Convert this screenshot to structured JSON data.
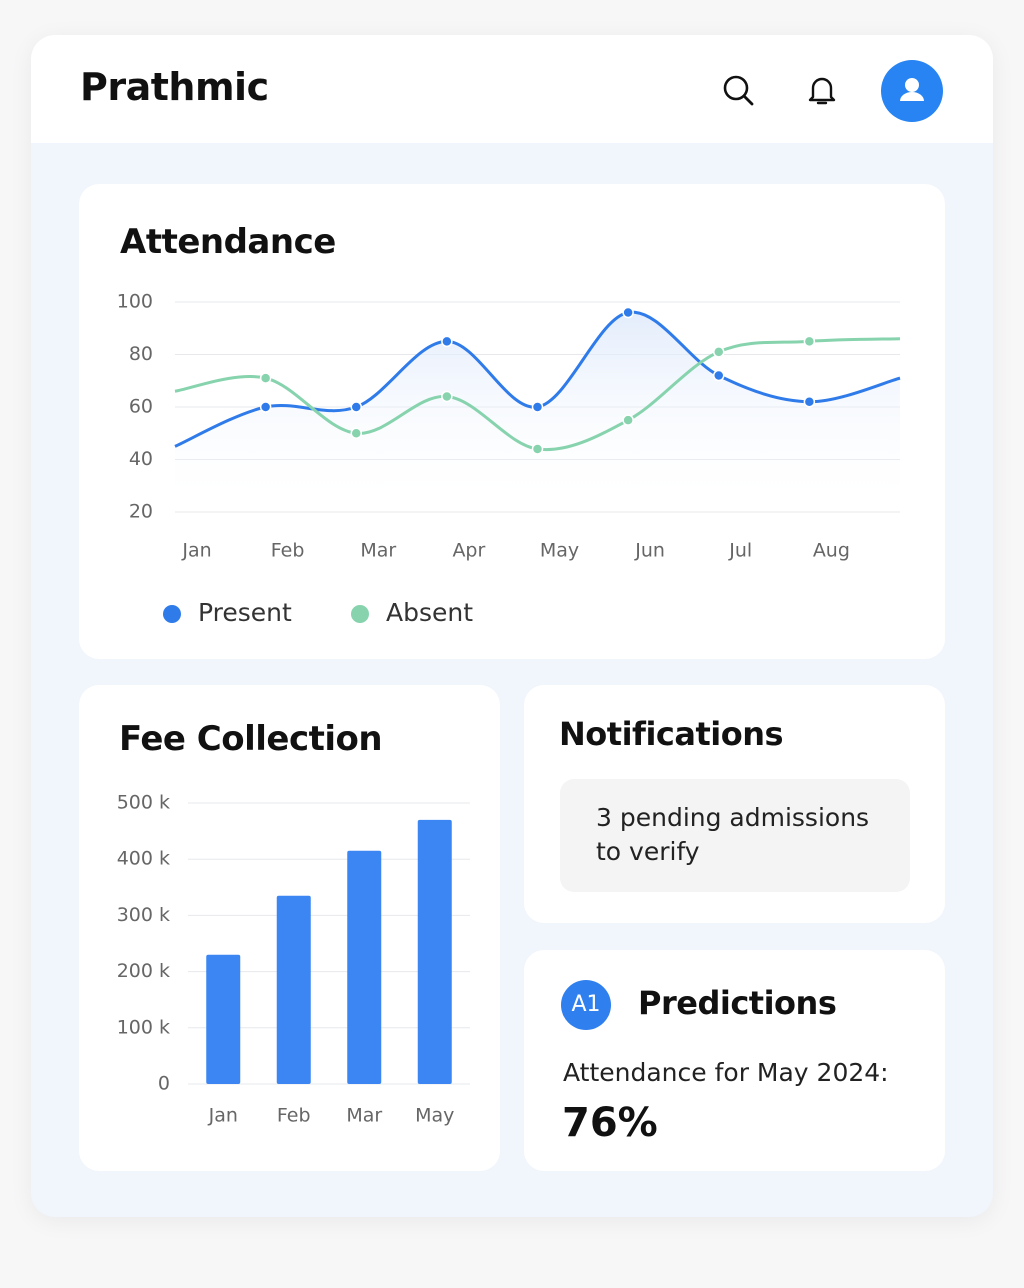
{
  "header": {
    "title": "Prathmic"
  },
  "chart_data": [
    {
      "type": "line",
      "title": "Attendance",
      "categories": [
        "Jan",
        "Feb",
        "Mar",
        "Apr",
        "May",
        "Jun",
        "Jul",
        "Aug",
        null
      ],
      "series": [
        {
          "name": "Present",
          "color": "#2f7bea",
          "values": [
            45,
            60,
            60,
            85,
            60,
            96,
            72,
            62,
            71
          ]
        },
        {
          "name": "Absent",
          "color": "#86d3ad",
          "values": [
            66,
            71,
            50,
            64,
            44,
            55,
            81,
            85,
            86
          ]
        }
      ],
      "ylim": [
        20,
        100
      ],
      "yticks": [
        20,
        40,
        60,
        80,
        100
      ],
      "grid": true,
      "legend": "bottom"
    },
    {
      "type": "bar",
      "title": "Fee Collection",
      "categories": [
        "Jan",
        "Feb",
        "Mar",
        "May"
      ],
      "values": [
        230000,
        335000,
        415000,
        470000
      ],
      "color": "#3b86f2",
      "ylim": [
        0,
        500000
      ],
      "yticks": [
        0,
        {
          "value": 100000,
          "label": "100 k"
        },
        {
          "value": 200000,
          "label": "200 k"
        },
        {
          "value": 300000,
          "label": "300 k"
        },
        {
          "value": 400000,
          "label": "400 k"
        },
        {
          "value": 500000,
          "label": "500 k"
        }
      ],
      "grid": true
    }
  ],
  "notifications": {
    "title": "Notifications",
    "items": [
      "3 pending admissions to verify"
    ]
  },
  "predictions": {
    "badge": "A1",
    "title": "Predictions",
    "label": "Attendance for May 2024:",
    "value": "76%"
  }
}
